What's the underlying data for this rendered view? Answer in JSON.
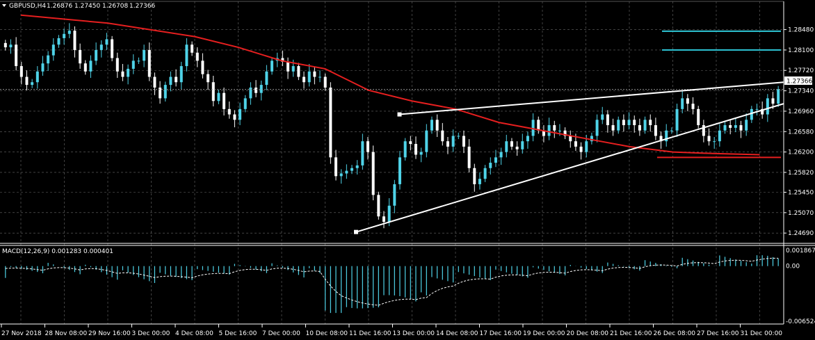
{
  "header": {
    "symbol_label": "GBPUSD,H4",
    "open": "1.26876",
    "high": "1.27450",
    "low": "1.26708",
    "close": "1.27366"
  },
  "indicator": {
    "label": "MACD(12,26,9) 0.001283 0.000401"
  },
  "colors": {
    "background": "#000000",
    "grid": "#6a6a6a",
    "bull_candle": "#4fd3e8",
    "bear_candle": "#ffffff",
    "moving_average": "#e61f1f",
    "trendline": "#ffffff",
    "level_cyan": "#2ec8d8",
    "level_red": "#e61f1f",
    "macd_hist": "#4fd3e8",
    "macd_signal": "#ffffff"
  },
  "chart_data": {
    "type": "candlestick",
    "price_axis": {
      "range": [
        1.2455,
        1.2885
      ],
      "ticks": [
        "1.28480",
        "1.28100",
        "1.27720",
        "1.27340",
        "1.26960",
        "1.26580",
        "1.26200",
        "1.25820",
        "1.25450",
        "1.25070",
        "1.24690"
      ],
      "current_price": "1.27366"
    },
    "time_axis": {
      "ticks": [
        "27 Nov 2018",
        "28 Nov 08:00",
        "29 Nov 16:00",
        "3 Dec 00:00",
        "4 Dec 08:00",
        "5 Dec 16:00",
        "7 Dec 00:00",
        "10 Dec 08:00",
        "11 Dec 16:00",
        "13 Dec 00:00",
        "14 Dec 08:00",
        "17 Dec 16:00",
        "19 Dec 00:00",
        "20 Dec 08:00",
        "21 Dec 16:00",
        "26 Dec 08:00",
        "27 Dec 16:00",
        "31 Dec 00:00"
      ]
    },
    "close_prices": [
      1.2815,
      1.282,
      1.278,
      1.276,
      1.2745,
      1.275,
      1.277,
      1.2785,
      1.28,
      1.282,
      1.2832,
      1.284,
      1.2846,
      1.281,
      1.2785,
      1.277,
      1.279,
      1.281,
      1.282,
      1.283,
      1.2795,
      1.277,
      1.276,
      1.2775,
      1.279,
      1.279,
      1.281,
      1.276,
      1.274,
      1.272,
      1.2745,
      1.276,
      1.275,
      1.278,
      1.282,
      1.2805,
      1.279,
      1.2765,
      1.275,
      1.2715,
      1.273,
      1.27,
      1.269,
      1.268,
      1.27,
      1.272,
      1.274,
      1.273,
      1.2745,
      1.277,
      1.279,
      1.2795,
      1.2788,
      1.277,
      1.278,
      1.276,
      1.275,
      1.277,
      1.276,
      1.276,
      1.274,
      1.261,
      1.2575,
      1.258,
      1.2585,
      1.259,
      1.2595,
      1.264,
      1.262,
      1.254,
      1.25,
      1.249,
      1.252,
      1.256,
      1.261,
      1.264,
      1.2635,
      1.2615,
      1.262,
      1.266,
      1.268,
      1.266,
      1.264,
      1.263,
      1.265,
      1.265,
      1.263,
      1.259,
      1.256,
      1.257,
      1.259,
      1.26,
      1.261,
      1.262,
      1.264,
      1.263,
      1.2625,
      1.264,
      1.265,
      1.268,
      1.266,
      1.265,
      1.267,
      1.266,
      1.266,
      1.265,
      1.264,
      1.263,
      1.262,
      1.264,
      1.265,
      1.268,
      1.269,
      1.267,
      1.266,
      1.268,
      1.267,
      1.268,
      1.267,
      1.266,
      1.268,
      1.267,
      1.265,
      1.264,
      1.266,
      1.266,
      1.27,
      1.272,
      1.271,
      1.27,
      1.267,
      1.265,
      1.264,
      1.264,
      1.266,
      1.267,
      1.2665,
      1.267,
      1.266,
      1.268,
      1.27,
      1.27,
      1.269,
      1.272,
      1.271,
      1.2737
    ],
    "moving_average": [
      {
        "x": "27 Nov 2018",
        "y": 1.2875
      },
      {
        "x": "29 Nov 16:00",
        "y": 1.286
      },
      {
        "x": "4 Dec 08:00",
        "y": 1.2835
      },
      {
        "x": "5 Dec 16:00",
        "y": 1.2815
      },
      {
        "x": "7 Dec 00:00",
        "y": 1.279
      },
      {
        "x": "10 Dec 08:00",
        "y": 1.2775
      },
      {
        "x": "11 Dec 16:00",
        "y": 1.2735
      },
      {
        "x": "13 Dec 00:00",
        "y": 1.2715
      },
      {
        "x": "14 Dec 08:00",
        "y": 1.27
      },
      {
        "x": "17 Dec 16:00",
        "y": 1.2675
      },
      {
        "x": "19 Dec 00:00",
        "y": 1.266
      },
      {
        "x": "20 Dec 08:00",
        "y": 1.2645
      },
      {
        "x": "21 Dec 16:00",
        "y": 1.263
      },
      {
        "x": "26 Dec 08:00",
        "y": 1.262
      },
      {
        "x": "27 Dec 16:00",
        "y": 1.2617
      },
      {
        "x": "31 Dec 00:00",
        "y": 1.2615
      }
    ],
    "trendlines": [
      {
        "from": {
          "x": "13 Dec 00:00",
          "y": 1.269
        },
        "to": {
          "x": "31 Dec 00:00",
          "y": 1.275
        }
      },
      {
        "from": {
          "x": "11 Dec 16:00",
          "y": 1.2471
        },
        "to": {
          "x": "31 Dec 00:00",
          "y": 1.271
        }
      }
    ],
    "horizontal_levels": [
      {
        "price": 1.2845,
        "color": "cyan"
      },
      {
        "price": 1.281,
        "color": "cyan"
      },
      {
        "price": 1.261,
        "color": "red"
      }
    ],
    "macd": {
      "range": [
        -0.006524,
        0.001867
      ],
      "ticks": [
        "0.001867",
        "0.00",
        "-0.006524"
      ],
      "macd_value": 0.001283,
      "signal_value": 0.000401
    }
  }
}
